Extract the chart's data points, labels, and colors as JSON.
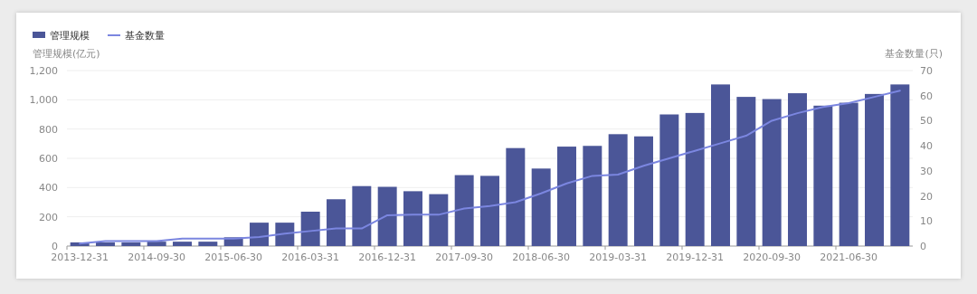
{
  "chart_data": {
    "type": "bar",
    "categories": [
      "2013-12-31",
      null,
      null,
      "2014-09-30",
      null,
      null,
      "2015-06-30",
      null,
      null,
      "2016-03-31",
      null,
      null,
      "2016-12-31",
      null,
      null,
      "2017-09-30",
      null,
      null,
      "2018-06-30",
      null,
      null,
      "2019-03-31",
      null,
      null,
      "2019-12-31",
      null,
      null,
      "2020-09-30",
      null,
      null,
      "2021-06-30",
      null,
      null
    ],
    "series": [
      {
        "name": "管理规模",
        "color": "#4b5698",
        "values": [
          25,
          25,
          25,
          30,
          30,
          30,
          60,
          160,
          160,
          235,
          320,
          410,
          405,
          375,
          355,
          485,
          480,
          670,
          530,
          680,
          685,
          765,
          750,
          900,
          910,
          1105,
          1020,
          1005,
          1045,
          960,
          980,
          1040,
          1105
        ]
      },
      {
        "name": "基金数量",
        "type": "line",
        "axis": "y2",
        "color": "#7b86e0",
        "values": [
          1,
          2,
          2,
          2,
          3,
          3,
          3,
          3.6,
          5,
          6,
          7,
          7,
          12.3,
          12.5,
          12.5,
          15,
          16,
          17.5,
          21,
          25,
          28,
          28.5,
          32,
          35,
          38,
          41,
          44,
          50,
          53,
          55.5,
          57,
          59.5,
          62
        ]
      }
    ],
    "ylabel": "管理规模(亿元)",
    "y2label": "基金数量(只)",
    "ylim": [
      0,
      1200
    ],
    "yticks": [
      0,
      200,
      400,
      600,
      800,
      {
        "value": 1000,
        "label": "1,000"
      },
      {
        "value": 1200,
        "label": "1,200"
      }
    ],
    "y2lim": [
      0,
      70
    ],
    "y2ticks": [
      0,
      10,
      20,
      30,
      40,
      50,
      60,
      70
    ],
    "grid": "y",
    "legend": "top left",
    "marker": "none",
    "line_style": "solid"
  }
}
